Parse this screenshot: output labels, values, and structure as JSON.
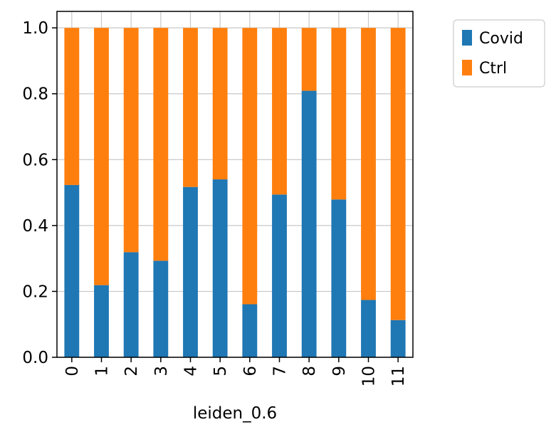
{
  "chart_data": {
    "type": "bar",
    "stacked": true,
    "categories": [
      "0",
      "1",
      "2",
      "3",
      "4",
      "5",
      "6",
      "7",
      "8",
      "9",
      "10",
      "11"
    ],
    "series": [
      {
        "name": "Covid",
        "values": [
          0.523,
          0.219,
          0.319,
          0.293,
          0.517,
          0.54,
          0.161,
          0.494,
          0.809,
          0.479,
          0.174,
          0.113
        ]
      },
      {
        "name": "Ctrl",
        "values": [
          0.477,
          0.781,
          0.681,
          0.707,
          0.483,
          0.46,
          0.839,
          0.506,
          0.191,
          0.521,
          0.826,
          0.887
        ]
      }
    ],
    "xlabel": "leiden_0.6",
    "ylabel": "",
    "ylim": [
      0,
      1.05
    ],
    "yticks": [
      "0.0",
      "0.2",
      "0.4",
      "0.6",
      "0.8",
      "1.0"
    ],
    "grid": true,
    "legend_position": "outside-top-right",
    "colors": {
      "Covid": "#1f77b4",
      "Ctrl": "#ff7f0e"
    }
  }
}
